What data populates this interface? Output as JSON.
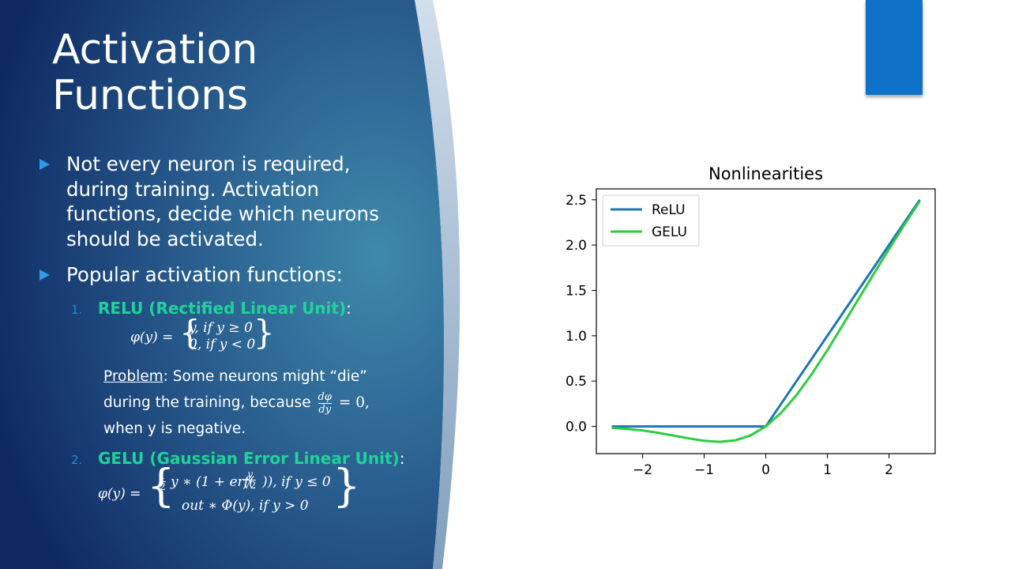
{
  "slide": {
    "title_line1": "Activation",
    "title_line2": "Functions",
    "bullets": [
      "Not every neuron is required, during training. Activation functions, decide which neurons should be activated.",
      "Popular activation functions:"
    ],
    "relu": {
      "number": "1.",
      "name": "RELU (Rectified Linear Unit)",
      "suffix": ":",
      "formula_lhs": "φ(y) =",
      "case1": "y, if y ≥ 0",
      "case2": "0, if y < 0"
    },
    "problem": {
      "label": "Problem",
      "text1": ": Some neurons might “die”",
      "text2": "during the training, because",
      "fraction_num": "dφ",
      "fraction_den": "dy",
      "text3": "= 0,",
      "text4": "when y is negative."
    },
    "gelu": {
      "number": "2.",
      "name": "GELU (Gaussian Error Linear Unit)",
      "suffix": ":",
      "formula_lhs": "φ(y) =",
      "half_num": "1",
      "half_den": "2",
      "case1_a": "y ∗ (1 + erf(",
      "case1_frac_num": "y",
      "case1_frac_den": "√2",
      "case1_b": ")), if y ≤ 0",
      "case2": "out ∗ Φ(y), if y > 0"
    }
  },
  "colors": {
    "accent_blue": "#1071c9",
    "relu_line": "#1f77b4",
    "gelu_line": "#2ecc40",
    "subheading_green": "#1fd39a"
  },
  "chart_data": {
    "type": "line",
    "title": "Nonlinearities",
    "xlabel": "",
    "ylabel": "",
    "xlim": [
      -2.75,
      2.75
    ],
    "ylim": [
      -0.3,
      2.62
    ],
    "xticks": [
      -2,
      -1,
      0,
      1,
      2
    ],
    "xtick_labels": [
      "−2",
      "−1",
      "0",
      "1",
      "2"
    ],
    "yticks": [
      0.0,
      0.5,
      1.0,
      1.5,
      2.0,
      2.5
    ],
    "ytick_labels": [
      "0.0",
      "0.5",
      "1.0",
      "1.5",
      "2.0",
      "2.5"
    ],
    "legend": "top-left",
    "grid": false,
    "series": [
      {
        "name": "ReLU",
        "color": "#1f77b4",
        "x": [
          -2.5,
          -2.0,
          -1.5,
          -1.0,
          -0.5,
          0.0,
          0.5,
          1.0,
          1.5,
          2.0,
          2.5
        ],
        "y": [
          0.0,
          0.0,
          0.0,
          0.0,
          0.0,
          0.0,
          0.5,
          1.0,
          1.5,
          2.0,
          2.5
        ]
      },
      {
        "name": "GELU",
        "color": "#2ecc40",
        "x": [
          -2.5,
          -2.25,
          -2.0,
          -1.75,
          -1.5,
          -1.25,
          -1.0,
          -0.75,
          -0.5,
          -0.25,
          0.0,
          0.25,
          0.5,
          0.75,
          1.0,
          1.25,
          1.5,
          1.75,
          2.0,
          2.25,
          2.5
        ],
        "y": [
          -0.016,
          -0.027,
          -0.045,
          -0.07,
          -0.1,
          -0.132,
          -0.159,
          -0.17,
          -0.154,
          -0.1,
          0.0,
          0.15,
          0.346,
          0.58,
          0.841,
          1.118,
          1.4,
          1.68,
          1.955,
          2.223,
          2.484
        ]
      }
    ]
  }
}
